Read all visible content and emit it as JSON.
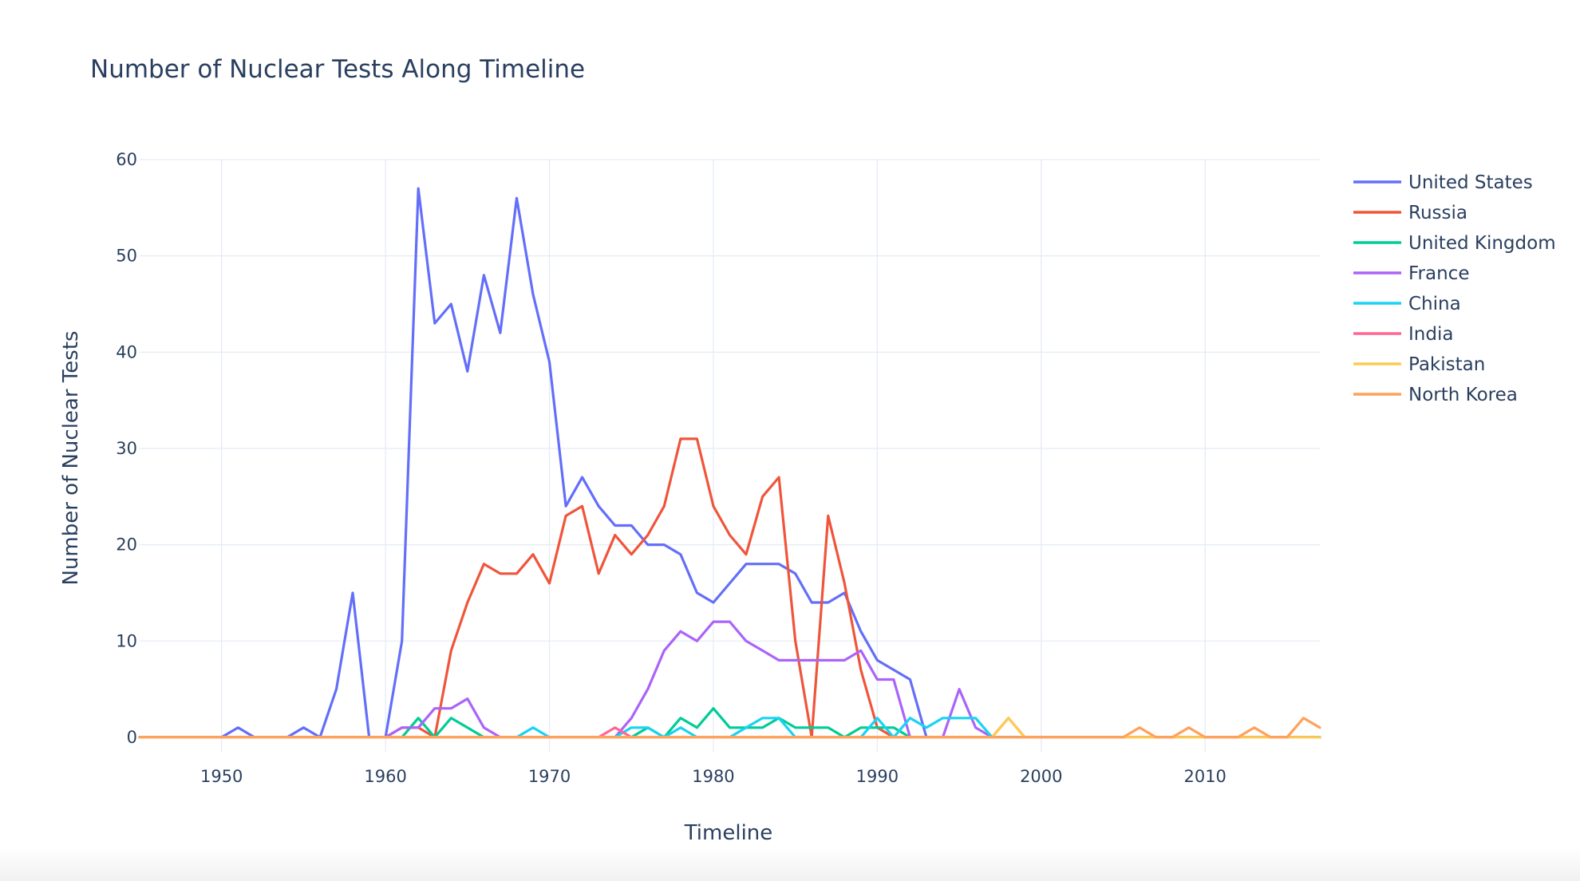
{
  "chart_data": {
    "type": "line",
    "title": "Number of Nuclear Tests Along Timeline",
    "xlabel": "Timeline",
    "ylabel": "Number of Nuclear Tests",
    "xlim": [
      1945,
      2017
    ],
    "ylim": [
      -1.5,
      60
    ],
    "x_ticks": [
      1950,
      1960,
      1970,
      1980,
      1990,
      2000,
      2010
    ],
    "y_ticks": [
      0,
      10,
      20,
      30,
      40,
      50,
      60
    ],
    "grid": true,
    "legend": "right",
    "x": [
      1945,
      1946,
      1947,
      1948,
      1949,
      1950,
      1951,
      1952,
      1953,
      1954,
      1955,
      1956,
      1957,
      1958,
      1959,
      1960,
      1961,
      1962,
      1963,
      1964,
      1965,
      1966,
      1967,
      1968,
      1969,
      1970,
      1971,
      1972,
      1973,
      1974,
      1975,
      1976,
      1977,
      1978,
      1979,
      1980,
      1981,
      1982,
      1983,
      1984,
      1985,
      1986,
      1987,
      1988,
      1989,
      1990,
      1991,
      1992,
      1993,
      1994,
      1995,
      1996,
      1997,
      1998,
      1999,
      2000,
      2001,
      2002,
      2003,
      2004,
      2005,
      2006,
      2007,
      2008,
      2009,
      2010,
      2011,
      2012,
      2013,
      2014,
      2015,
      2016,
      2017
    ],
    "series": [
      {
        "name": "United States",
        "color": "#636efa",
        "values": [
          0,
          0,
          0,
          0,
          0,
          0,
          1,
          0,
          0,
          0,
          1,
          0,
          5,
          15,
          0,
          0,
          10,
          57,
          43,
          45,
          38,
          48,
          42,
          56,
          46,
          39,
          24,
          27,
          24,
          22,
          22,
          20,
          20,
          19,
          15,
          14,
          16,
          18,
          18,
          18,
          17,
          14,
          14,
          15,
          11,
          8,
          7,
          6,
          0,
          0,
          0,
          0,
          0,
          0,
          0,
          0,
          0,
          0,
          0,
          0,
          0,
          0,
          0,
          0,
          0,
          0,
          0,
          0,
          0,
          0,
          0,
          0,
          0
        ]
      },
      {
        "name": "Russia",
        "color": "#ef553b",
        "values": [
          0,
          0,
          0,
          0,
          0,
          0,
          0,
          0,
          0,
          0,
          0,
          0,
          0,
          0,
          0,
          0,
          1,
          1,
          0,
          9,
          14,
          18,
          17,
          17,
          19,
          16,
          23,
          24,
          17,
          21,
          19,
          21,
          24,
          31,
          31,
          24,
          21,
          19,
          25,
          27,
          10,
          0,
          23,
          16,
          7,
          1,
          0,
          0,
          0,
          0,
          0,
          0,
          0,
          0,
          0,
          0,
          0,
          0,
          0,
          0,
          0,
          0,
          0,
          0,
          0,
          0,
          0,
          0,
          0,
          0,
          0,
          0,
          0
        ]
      },
      {
        "name": "United Kingdom",
        "color": "#00cc96",
        "values": [
          0,
          0,
          0,
          0,
          0,
          0,
          0,
          0,
          0,
          0,
          0,
          0,
          0,
          0,
          0,
          0,
          0,
          2,
          0,
          2,
          1,
          0,
          0,
          0,
          0,
          0,
          0,
          0,
          0,
          0,
          0,
          1,
          0,
          2,
          1,
          3,
          1,
          1,
          1,
          2,
          1,
          1,
          1,
          0,
          1,
          1,
          1,
          0,
          0,
          0,
          0,
          0,
          0,
          0,
          0,
          0,
          0,
          0,
          0,
          0,
          0,
          0,
          0,
          0,
          0,
          0,
          0,
          0,
          0,
          0,
          0,
          0,
          0
        ]
      },
      {
        "name": "France",
        "color": "#ab63fa",
        "values": [
          0,
          0,
          0,
          0,
          0,
          0,
          0,
          0,
          0,
          0,
          0,
          0,
          0,
          0,
          0,
          0,
          1,
          1,
          3,
          3,
          4,
          1,
          0,
          0,
          0,
          0,
          0,
          0,
          0,
          0,
          2,
          5,
          9,
          11,
          10,
          12,
          12,
          10,
          9,
          8,
          8,
          8,
          8,
          8,
          9,
          6,
          6,
          0,
          0,
          0,
          5,
          1,
          0,
          0,
          0,
          0,
          0,
          0,
          0,
          0,
          0,
          0,
          0,
          0,
          0,
          0,
          0,
          0,
          0,
          0,
          0,
          0,
          0
        ]
      },
      {
        "name": "China",
        "color": "#19d3f3",
        "values": [
          0,
          0,
          0,
          0,
          0,
          0,
          0,
          0,
          0,
          0,
          0,
          0,
          0,
          0,
          0,
          0,
          0,
          0,
          0,
          0,
          0,
          0,
          0,
          0,
          1,
          0,
          0,
          0,
          0,
          0,
          1,
          1,
          0,
          1,
          0,
          0,
          0,
          1,
          2,
          2,
          0,
          0,
          0,
          0,
          0,
          2,
          0,
          2,
          1,
          2,
          2,
          2,
          0,
          0,
          0,
          0,
          0,
          0,
          0,
          0,
          0,
          0,
          0,
          0,
          0,
          0,
          0,
          0,
          0,
          0,
          0,
          0,
          0
        ]
      },
      {
        "name": "India",
        "color": "#ff6692",
        "values": [
          0,
          0,
          0,
          0,
          0,
          0,
          0,
          0,
          0,
          0,
          0,
          0,
          0,
          0,
          0,
          0,
          0,
          0,
          0,
          0,
          0,
          0,
          0,
          0,
          0,
          0,
          0,
          0,
          0,
          1,
          0,
          0,
          0,
          0,
          0,
          0,
          0,
          0,
          0,
          0,
          0,
          0,
          0,
          0,
          0,
          0,
          0,
          0,
          0,
          0,
          0,
          0,
          0,
          2,
          0,
          0,
          0,
          0,
          0,
          0,
          0,
          0,
          0,
          0,
          0,
          0,
          0,
          0,
          0,
          0,
          0,
          0,
          0
        ]
      },
      {
        "name": "Pakistan",
        "color": "#fecb52",
        "values": [
          0,
          0,
          0,
          0,
          0,
          0,
          0,
          0,
          0,
          0,
          0,
          0,
          0,
          0,
          0,
          0,
          0,
          0,
          0,
          0,
          0,
          0,
          0,
          0,
          0,
          0,
          0,
          0,
          0,
          0,
          0,
          0,
          0,
          0,
          0,
          0,
          0,
          0,
          0,
          0,
          0,
          0,
          0,
          0,
          0,
          0,
          0,
          0,
          0,
          0,
          0,
          0,
          0,
          2,
          0,
          0,
          0,
          0,
          0,
          0,
          0,
          0,
          0,
          0,
          0,
          0,
          0,
          0,
          0,
          0,
          0,
          0,
          0
        ]
      },
      {
        "name": "North Korea",
        "color": "#ffa15a",
        "values": [
          0,
          0,
          0,
          0,
          0,
          0,
          0,
          0,
          0,
          0,
          0,
          0,
          0,
          0,
          0,
          0,
          0,
          0,
          0,
          0,
          0,
          0,
          0,
          0,
          0,
          0,
          0,
          0,
          0,
          0,
          0,
          0,
          0,
          0,
          0,
          0,
          0,
          0,
          0,
          0,
          0,
          0,
          0,
          0,
          0,
          0,
          0,
          0,
          0,
          0,
          0,
          0,
          0,
          0,
          0,
          0,
          0,
          0,
          0,
          0,
          0,
          1,
          0,
          0,
          1,
          0,
          0,
          0,
          1,
          0,
          0,
          2,
          1
        ]
      }
    ]
  }
}
